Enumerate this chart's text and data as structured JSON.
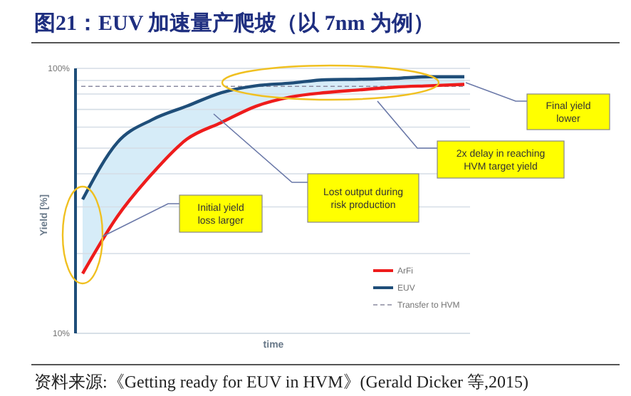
{
  "chart_data": {
    "type": "line",
    "title": "图21：EUV 加速量产爬坡（以 7nm 为例）",
    "xlabel": "time",
    "ylabel": "Yield [%]",
    "categories": [
      null,
      null,
      null,
      null,
      null,
      null,
      null,
      null,
      null,
      null,
      null,
      null
    ],
    "series": [
      {
        "name": "ArFi",
        "color": "#ee1c1c",
        "values": [
          16.8,
          27.6,
          40,
          54,
          62.5,
          72,
          78,
          81,
          83,
          85,
          86,
          87
        ]
      },
      {
        "name": "EUV",
        "color": "#1f4e79",
        "values": [
          32,
          52.5,
          64,
          72,
          81,
          86,
          88,
          90.6,
          91,
          91.7,
          93,
          93
        ],
        "lower": [
          16.8,
          27.6,
          40,
          54,
          62.5,
          72,
          78,
          81,
          83,
          85,
          86,
          87
        ],
        "upper": [
          32,
          52.5,
          64,
          72,
          81,
          86,
          88,
          90.6,
          91,
          91.7,
          93,
          93
        ]
      }
    ],
    "log": "y",
    "ylim": [
      10,
      100
    ],
    "yticks": [
      {
        "value": 10,
        "label": "10%"
      },
      {
        "value": 20,
        "label": null
      },
      {
        "value": 30,
        "label": null
      },
      {
        "value": 40,
        "label": null
      },
      {
        "value": 50,
        "label": null
      },
      {
        "value": 60,
        "label": null
      },
      {
        "value": 70,
        "label": null
      },
      {
        "value": 80,
        "label": null
      },
      {
        "value": 90,
        "label": null
      },
      {
        "value": 100,
        "label": "100%"
      }
    ],
    "grid": "y",
    "legend": "bottom right",
    "marker": "none",
    "line_style": "solid",
    "ref_lines": [
      {
        "axis": "y",
        "value": 85.5,
        "label": "Transfer to HVM",
        "color": "#8a8aa0",
        "line_style": "dashed"
      }
    ],
    "annotations": [
      "Final yield\nlower",
      "2x delay in reaching\nHVM target yield",
      "Lost output during\nrisk production",
      "Initial yield\nloss larger",
      "资料来源:《Getting ready for EUV in HVM》(Gerald Dicker 等,2015)"
    ]
  }
}
